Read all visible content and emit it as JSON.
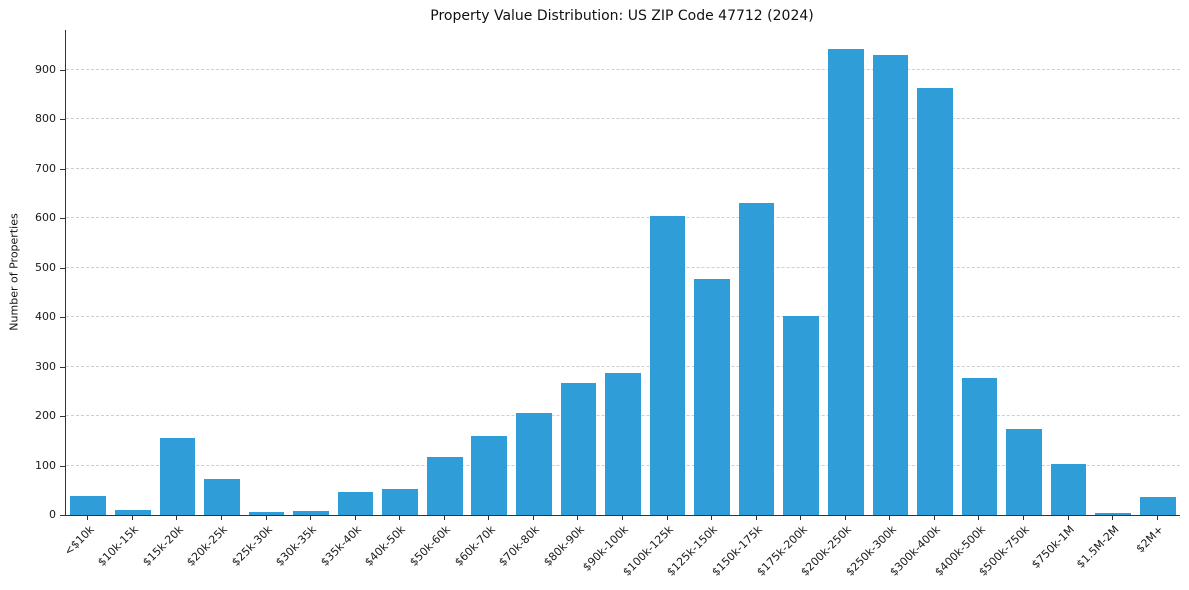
{
  "chart_data": {
    "type": "bar",
    "title": "Property Value Distribution: US ZIP Code 47712 (2024)",
    "xlabel": "",
    "ylabel": "Number of Properties",
    "bar_color": "#2e9dd8",
    "ylim": [
      0,
      980
    ],
    "yticks": [
      0,
      100,
      200,
      300,
      400,
      500,
      600,
      700,
      800,
      900
    ],
    "grid": "dashed-horizontal",
    "legend": "none",
    "categories": [
      "<$10k",
      "$10k-15k",
      "$15k-20k",
      "$20k-25k",
      "$25k-30k",
      "$30k-35k",
      "$35k-40k",
      "$40k-50k",
      "$50k-60k",
      "$60k-70k",
      "$70k-80k",
      "$80k-90k",
      "$90k-100k",
      "$100k-125k",
      "$125k-150k",
      "$150k-175k",
      "$175k-200k",
      "$200k-250k",
      "$250k-300k",
      "$300k-400k",
      "$400k-500k",
      "$500k-750k",
      "$750k-1M",
      "$1.5M-2M",
      "$2M+"
    ],
    "values": [
      38,
      10,
      156,
      73,
      6,
      8,
      47,
      53,
      118,
      160,
      207,
      266,
      286,
      604,
      476,
      631,
      403,
      941,
      929,
      862,
      276,
      174,
      103,
      5,
      36
    ]
  }
}
